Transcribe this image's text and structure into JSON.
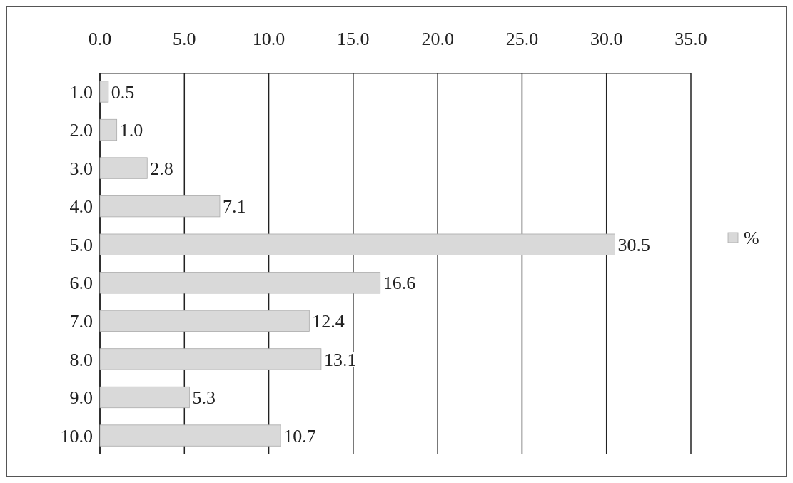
{
  "chart_data": {
    "type": "bar",
    "orientation": "horizontal",
    "categories": [
      "1.0",
      "2.0",
      "3.0",
      "4.0",
      "5.0",
      "6.0",
      "7.0",
      "8.0",
      "9.0",
      "10.0"
    ],
    "series": [
      {
        "name": "%",
        "color": "#d9d9d9",
        "values": [
          0.5,
          1.0,
          2.8,
          7.1,
          30.5,
          16.6,
          12.4,
          13.1,
          5.3,
          10.7
        ],
        "value_labels": [
          "0.5",
          "1.0",
          "2.8",
          "7.1",
          "30.5",
          "16.6",
          "12.4",
          "13.1",
          "5.3",
          "10.7"
        ]
      }
    ],
    "xlim": [
      0,
      35
    ],
    "xticks": [
      {
        "value": 0,
        "label": "0.0"
      },
      {
        "value": 5,
        "label": "5.0"
      },
      {
        "value": 10,
        "label": "10.0"
      },
      {
        "value": 15,
        "label": "15.0"
      },
      {
        "value": 20,
        "label": "20.0"
      },
      {
        "value": 25,
        "label": "25.0"
      },
      {
        "value": 30,
        "label": "30.0"
      },
      {
        "value": 35,
        "label": "35.0"
      }
    ],
    "grid": "x",
    "legend": "right"
  }
}
